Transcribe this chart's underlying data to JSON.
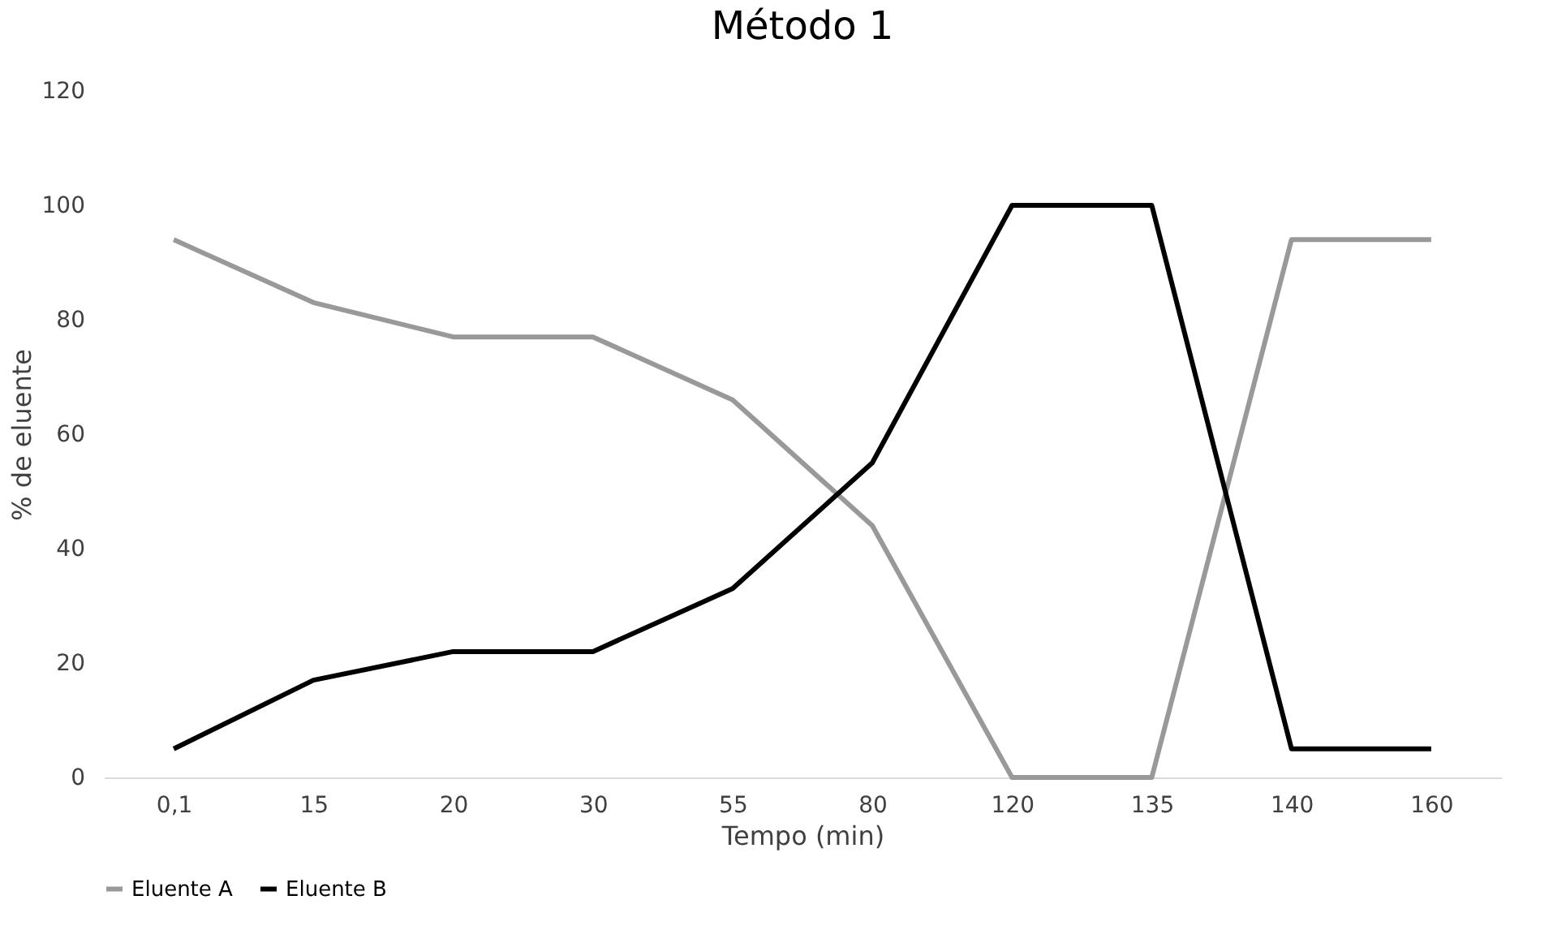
{
  "chart_data": {
    "type": "line",
    "title": "Método 1",
    "xlabel": "Tempo (min)",
    "ylabel": "% de eluente",
    "categories": [
      "0,1",
      "15",
      "20",
      "30",
      "55",
      "80",
      "120",
      "135",
      "140",
      "160"
    ],
    "series": [
      {
        "name": "Eluente A",
        "color": "#999999",
        "values": [
          94,
          83,
          77,
          77,
          66,
          44,
          0,
          0,
          94,
          94
        ]
      },
      {
        "name": "Eluente B",
        "color": "#000000",
        "values": [
          5,
          17,
          22,
          22,
          33,
          55,
          100,
          100,
          5,
          5
        ]
      }
    ],
    "ylim": [
      0,
      120
    ],
    "yticks": [
      0,
      20,
      40,
      60,
      80,
      100,
      120
    ],
    "grid": false,
    "legend": "bottom",
    "marker": "none",
    "line_style": "solid"
  }
}
